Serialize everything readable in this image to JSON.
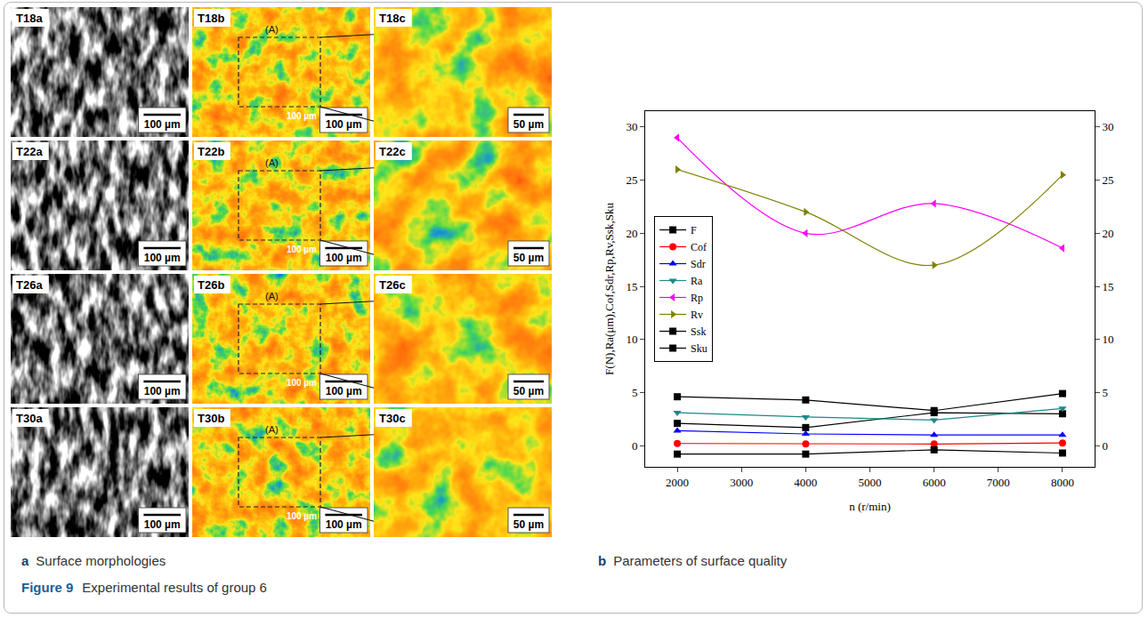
{
  "figure": {
    "label": "Figure 9",
    "caption": "Experimental results of group 6"
  },
  "panel_a": {
    "letter": "a",
    "title": "Surface morphologies",
    "rows": [
      [
        "T18a",
        "T18b",
        "T18c"
      ],
      [
        "T22a",
        "T22b",
        "T22c"
      ],
      [
        "T26a",
        "T26b",
        "T26c"
      ],
      [
        "T30a",
        "T30b",
        "T30c"
      ]
    ],
    "scale_bars": [
      "100 µm",
      "100 µm",
      "50 µm"
    ],
    "region": {
      "label": "(A)",
      "scale_bar": "100 µm"
    }
  },
  "panel_b": {
    "letter": "b",
    "title": "Parameters of surface quality"
  },
  "chart_data": {
    "type": "line",
    "x_label": "n (r/min)",
    "y_label": "F(N),Ra(μm),Cof,Sdr,Rp,Rv,Ssk,Sku",
    "x": [
      2000,
      4000,
      6000,
      8000
    ],
    "xlim": [
      1500,
      8500
    ],
    "xticks": [
      2000,
      3000,
      4000,
      5000,
      6000,
      7000,
      8000
    ],
    "ylim": [
      -2,
      31.5
    ],
    "yticks": [
      0,
      5,
      10,
      15,
      20,
      25,
      30
    ],
    "y2lim": [
      -2,
      31.5
    ],
    "y2ticks": [
      0,
      5,
      10,
      15,
      20,
      25,
      30
    ],
    "grid": false,
    "legend": "left",
    "series": [
      {
        "name": "F",
        "color": "#000000",
        "marker": "square",
        "line_style": "solid",
        "values": [
          2.1,
          1.7,
          3.1,
          3.0
        ]
      },
      {
        "name": "Cof",
        "color": "#ff0000",
        "marker": "circle",
        "line_style": "solid",
        "values": [
          0.2,
          0.15,
          0.15,
          0.25
        ]
      },
      {
        "name": "Sdr",
        "color": "#0000ff",
        "marker": "triangle-up",
        "line_style": "solid",
        "values": [
          1.4,
          1.1,
          1.0,
          1.0
        ]
      },
      {
        "name": "Ra",
        "color": "#1a8a8a",
        "marker": "triangle-down",
        "line_style": "solid",
        "values": [
          3.1,
          2.7,
          2.4,
          3.5
        ]
      },
      {
        "name": "Rp",
        "color": "#ff00ff",
        "marker": "triangle-left",
        "line_style": "spline",
        "values": [
          29,
          20,
          22.8,
          18.6
        ]
      },
      {
        "name": "Rv",
        "color": "#808000",
        "marker": "triangle-right",
        "line_style": "spline",
        "values": [
          26,
          22,
          17,
          25.5
        ]
      },
      {
        "name": "Ssk",
        "color": "#000000",
        "marker": "square",
        "line_style": "solid",
        "values": [
          -0.8,
          -0.8,
          -0.4,
          -0.7
        ]
      },
      {
        "name": "Sku",
        "color": "#000000",
        "marker": "square",
        "line_style": "solid",
        "values": [
          4.6,
          4.3,
          3.3,
          4.9
        ]
      }
    ]
  }
}
